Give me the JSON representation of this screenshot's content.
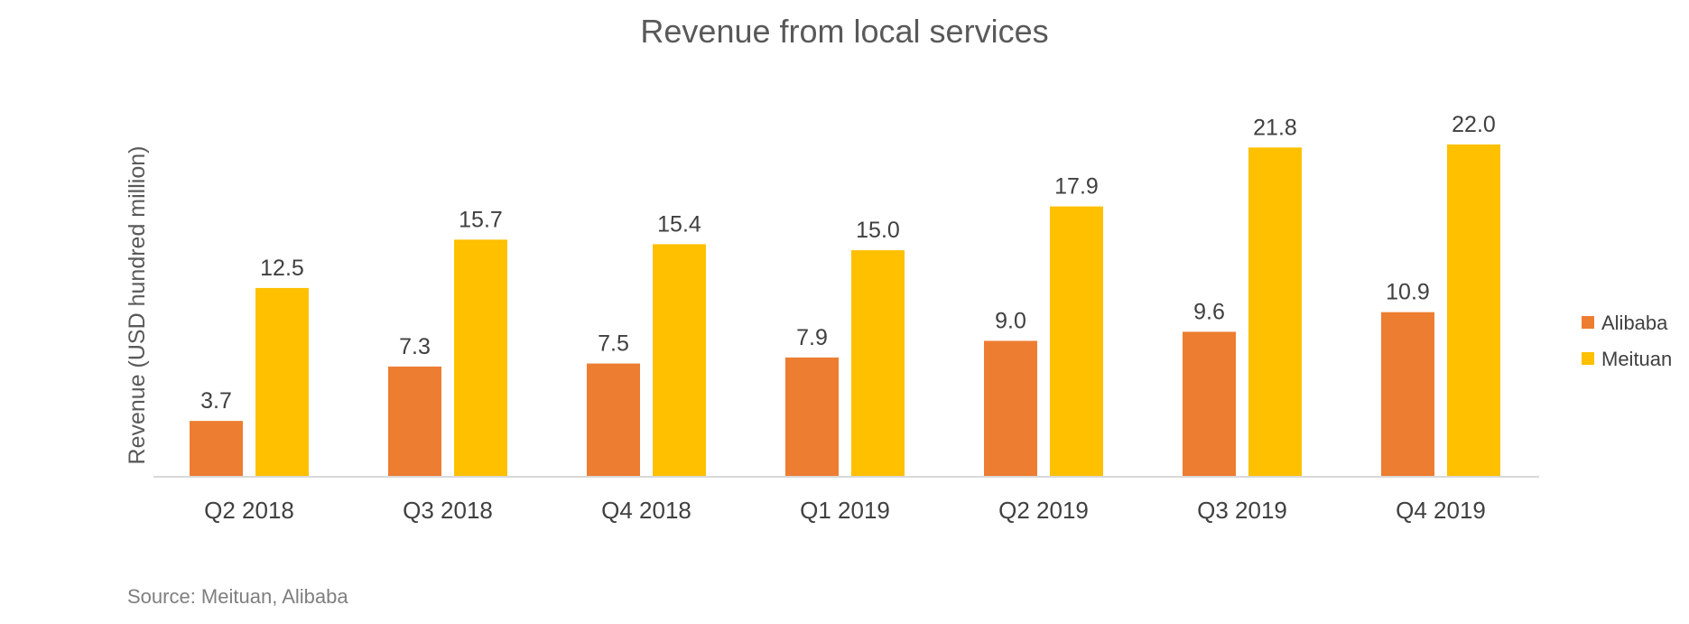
{
  "chart_data": {
    "type": "bar",
    "title": "Revenue from local services",
    "ylabel": "Revenue (USD hundred million)",
    "xlabel": "",
    "categories": [
      "Q2 2018",
      "Q3 2018",
      "Q4 2018",
      "Q1 2019",
      "Q2 2019",
      "Q3 2019",
      "Q4 2019"
    ],
    "series": [
      {
        "name": "Alibaba",
        "color": "#ED7D31",
        "values": [
          3.7,
          7.3,
          7.5,
          7.9,
          9.0,
          9.6,
          10.9
        ],
        "labels": [
          "3.7",
          "7.3",
          "7.5",
          "7.9",
          "9.0",
          "9.6",
          "10.9"
        ]
      },
      {
        "name": "Meituan",
        "color": "#FFC000",
        "values": [
          12.5,
          15.7,
          15.4,
          15.0,
          17.9,
          21.8,
          22.0
        ],
        "labels": [
          "12.5",
          "15.7",
          "15.4",
          "15.0",
          "17.9",
          "21.8",
          "22.0"
        ]
      }
    ],
    "ylim": [
      0,
      22.0
    ],
    "grid": false,
    "legend": "right",
    "source": "Source: Meituan, Alibaba"
  }
}
